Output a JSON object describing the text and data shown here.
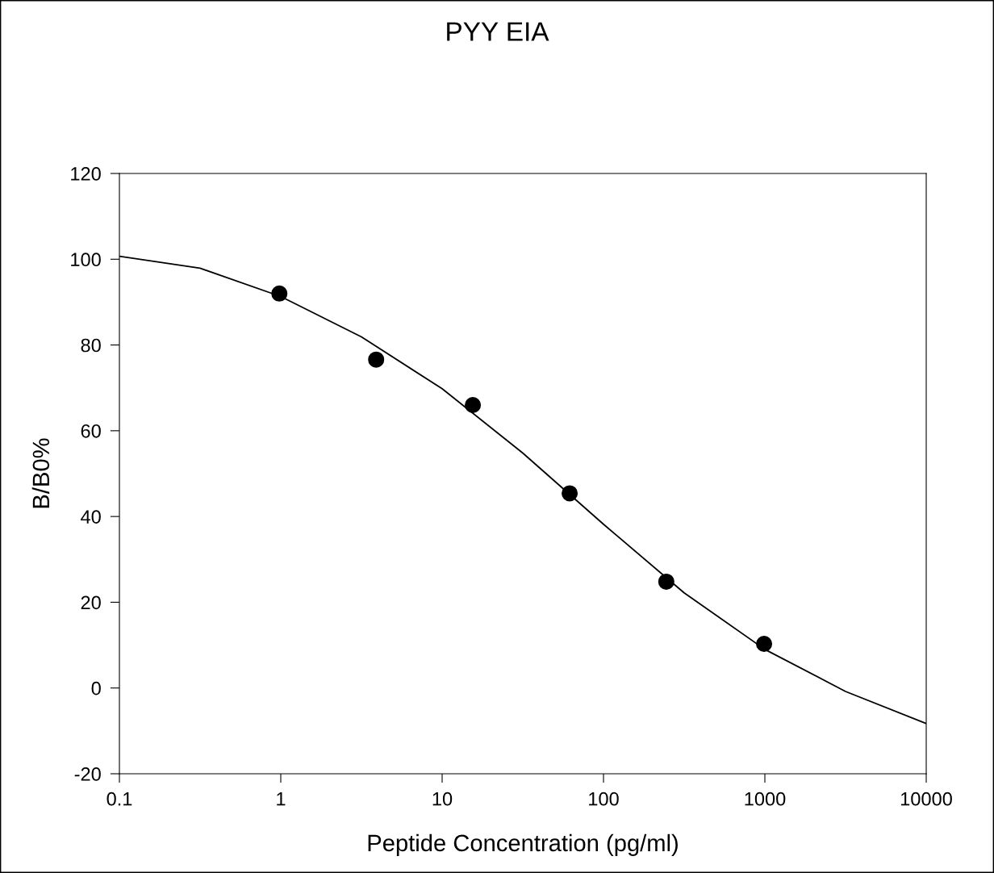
{
  "chart_data": {
    "type": "scatter",
    "title": "PYY EIA",
    "xlabel": "Peptide Concentration (pg/ml)",
    "ylabel": "B/B0%",
    "log": "x",
    "xlim": [
      0.1,
      10000
    ],
    "ylim": [
      -20,
      120
    ],
    "xticks": [
      0.1,
      1,
      10,
      100,
      1000,
      10000
    ],
    "yticks": [
      -20,
      0,
      20,
      40,
      60,
      80,
      100,
      120
    ],
    "grid": false,
    "legend": false,
    "series": [
      {
        "marker": "circle",
        "color": "#000000",
        "x": [
          0.98,
          3.9,
          15.5,
          61.7,
          245,
          989
        ],
        "values": [
          92,
          76.6,
          66.0,
          45.4,
          24.8,
          10.3
        ]
      },
      {
        "type": "line",
        "marker": "none",
        "line_style": "solid",
        "color": "#000000",
        "x": [
          0.1,
          0.316,
          1,
          3.16,
          10,
          31.6,
          100,
          316,
          1000,
          3162,
          10000
        ],
        "values": [
          100.7,
          97.9,
          91.3,
          81.9,
          69.8,
          54.8,
          38.2,
          22.2,
          9.0,
          -0.8,
          -8.3
        ]
      }
    ]
  }
}
